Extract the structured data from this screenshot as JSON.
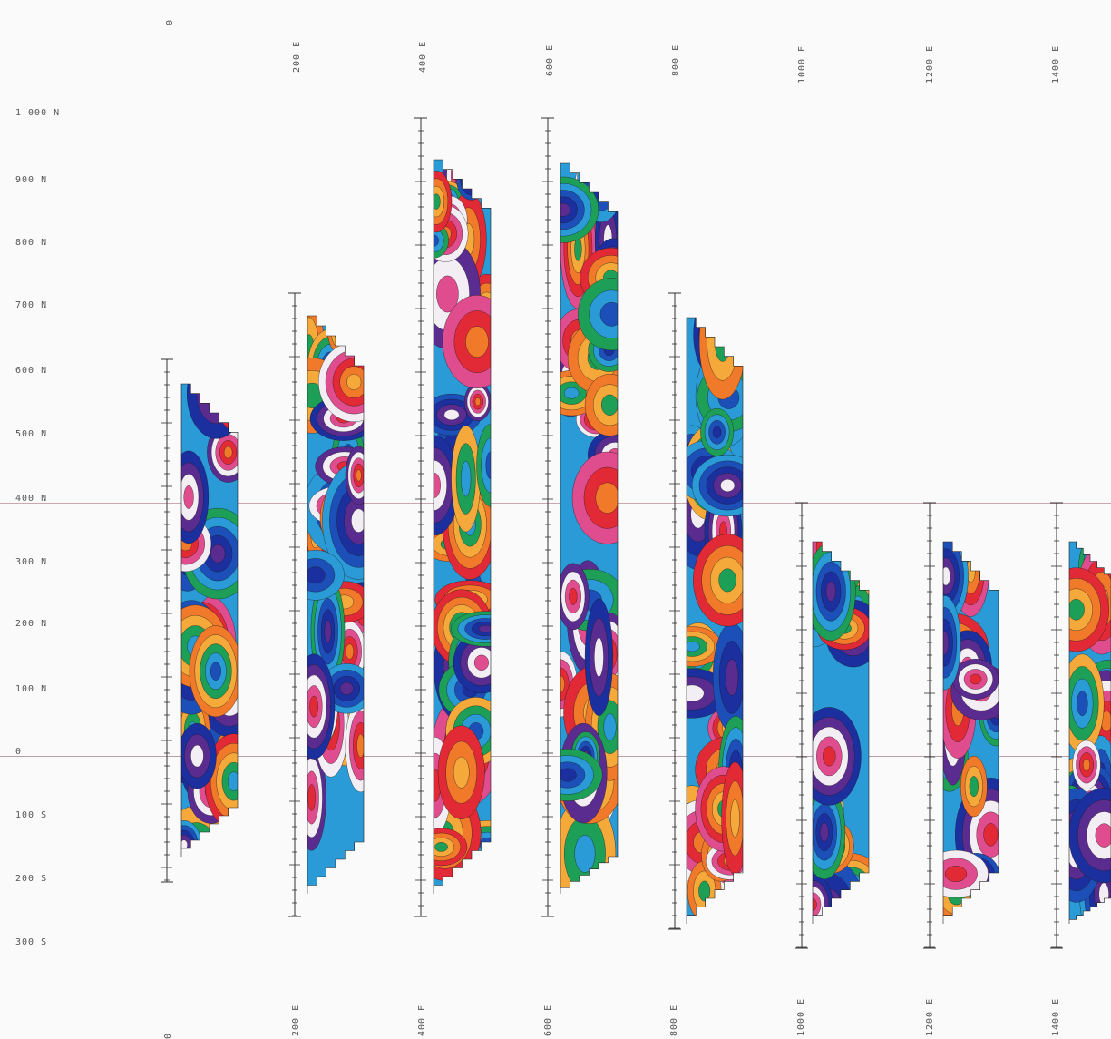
{
  "colors": {
    "ref_line_400n": "#c9a9ae",
    "ref_line_0": "#b9a1a3",
    "axis": "#333333",
    "palette": [
      "#f2eef4",
      "#e04d8f",
      "#e12a36",
      "#f07a2a",
      "#f4a93a",
      "#1e9f57",
      "#2a9bd6",
      "#1d4fb8",
      "#1b2f9e",
      "#5a2c8f"
    ]
  },
  "y_axis_labels": [
    "1 000 N",
    "900 N",
    "800 N",
    "700 N",
    "600 N",
    "500 N",
    "400 N",
    "300 N",
    "200 N",
    "100 N",
    "0",
    "100 S",
    "200 S",
    "300 S"
  ],
  "top_labels": [
    "0",
    "200 E",
    "400 E",
    "600 E",
    "800 E",
    "1000 E",
    "1200 E",
    "1400 E"
  ],
  "bottom_labels": [
    "0",
    "200 E",
    "400 E",
    "600 E",
    "800 E",
    "1000 E",
    "1200 E",
    "1400 E"
  ],
  "map": {
    "type": "contour map of survey sections",
    "panel_count": 8,
    "northing_range": [
      -300,
      1000
    ]
  }
}
